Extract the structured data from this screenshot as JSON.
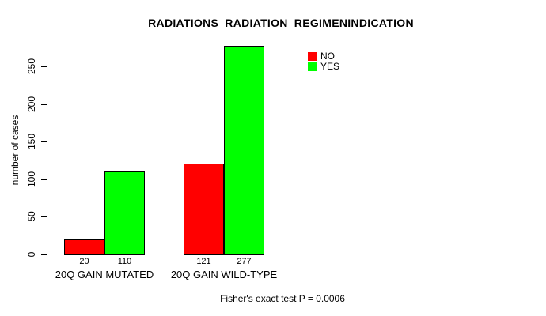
{
  "background_color": "#FFFFFF",
  "foreground_color": "#000000",
  "legend": {
    "items": [
      {
        "label": "NO",
        "color": "#FF0000"
      },
      {
        "label": "YES",
        "color": "#00FF00"
      }
    ]
  },
  "chart_data": {
    "type": "bar",
    "title": "RADIATIONS_RADIATION_REGIMENINDICATION",
    "xlabel": "",
    "ylabel": "number of cases",
    "categories": [
      "20Q GAIN MUTATED",
      "20Q GAIN WILD-TYPE"
    ],
    "series": [
      {
        "name": "NO",
        "color": "#FF0000",
        "values": [
          20,
          121
        ]
      },
      {
        "name": "YES",
        "color": "#00FF00",
        "values": [
          110,
          277
        ]
      }
    ],
    "bar_value_labels": [
      [
        "20",
        "110"
      ],
      [
        "121",
        "277"
      ]
    ],
    "yticks": [
      0,
      50,
      100,
      150,
      200,
      250
    ],
    "ylim": [
      0,
      277
    ],
    "grid": false,
    "legend_position": "inside-top-right",
    "annotation": "Fisher's exact test P = 0.0006"
  }
}
